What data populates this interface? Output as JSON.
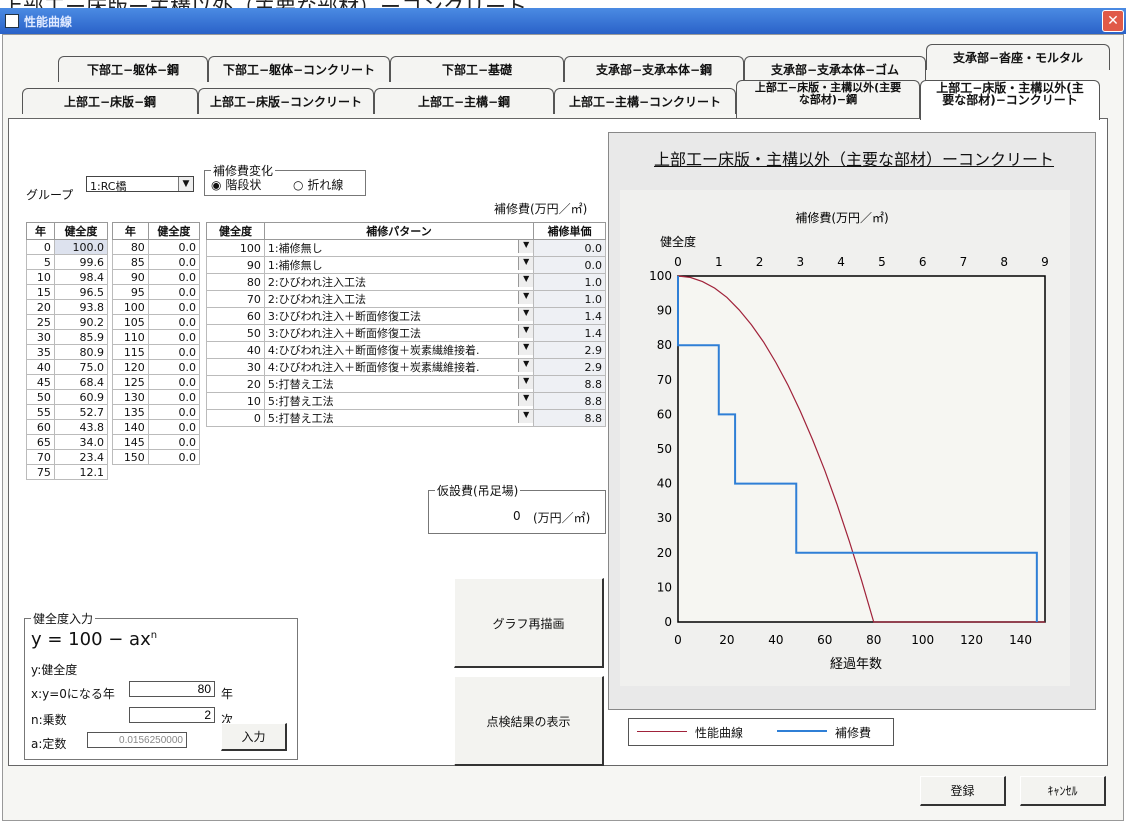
{
  "outer_caption": "上部工ー床版ー主構以外（主要な部材）ーコンクリート",
  "window": {
    "title": "性能曲線",
    "close_glyph": "✕"
  },
  "tabs": {
    "row1": [
      "下部工−躯体−鋼",
      "下部工−躯体−コンクリート",
      "下部工−基礎",
      "支承部−支承本体−鋼",
      "支承部−支承本体−ゴム",
      "支承部−沓座・モルタル"
    ],
    "row2": [
      "上部工−床版−鋼",
      "上部工−床版−コンクリート",
      "上部工−主構−鋼",
      "上部工−主構−コンクリート"
    ],
    "row2_two_line": [
      {
        "line1": "上部工−床版・主構以外(主要",
        "line2": "な部材)−鋼"
      },
      {
        "line1": "上部工−床版・主構以外(主",
        "line2": "要な部材)−コンクリート"
      }
    ]
  },
  "group_select": {
    "label": "グループ",
    "value": "1:RC橋"
  },
  "repair_change": {
    "title": "補修費変化",
    "option1": "階段状",
    "option2": "折れ線"
  },
  "unit_header": "補修費(万円／㎡)",
  "health_table": {
    "headers": [
      "年",
      "健全度",
      "年",
      "健全度"
    ],
    "left": [
      [
        "0",
        "100.0"
      ],
      [
        "5",
        "99.6"
      ],
      [
        "10",
        "98.4"
      ],
      [
        "15",
        "96.5"
      ],
      [
        "20",
        "93.8"
      ],
      [
        "25",
        "90.2"
      ],
      [
        "30",
        "85.9"
      ],
      [
        "35",
        "80.9"
      ],
      [
        "40",
        "75.0"
      ],
      [
        "45",
        "68.4"
      ],
      [
        "50",
        "60.9"
      ],
      [
        "55",
        "52.7"
      ],
      [
        "60",
        "43.8"
      ],
      [
        "65",
        "34.0"
      ],
      [
        "70",
        "23.4"
      ],
      [
        "75",
        "12.1"
      ]
    ],
    "right": [
      [
        "80",
        "0.0"
      ],
      [
        "85",
        "0.0"
      ],
      [
        "90",
        "0.0"
      ],
      [
        "95",
        "0.0"
      ],
      [
        "100",
        "0.0"
      ],
      [
        "105",
        "0.0"
      ],
      [
        "110",
        "0.0"
      ],
      [
        "115",
        "0.0"
      ],
      [
        "120",
        "0.0"
      ],
      [
        "125",
        "0.0"
      ],
      [
        "130",
        "0.0"
      ],
      [
        "135",
        "0.0"
      ],
      [
        "140",
        "0.0"
      ],
      [
        "145",
        "0.0"
      ],
      [
        "150",
        "0.0"
      ]
    ]
  },
  "repair_table": {
    "headers": [
      "健全度",
      "補修パターン",
      "補修単価"
    ],
    "rows": [
      [
        "100",
        "1:補修無し",
        "0.0"
      ],
      [
        "90",
        "1:補修無し",
        "0.0"
      ],
      [
        "80",
        "2:ひびわれ注入工法",
        "1.0"
      ],
      [
        "70",
        "2:ひびわれ注入工法",
        "1.0"
      ],
      [
        "60",
        "3:ひびわれ注入＋断面修復工法",
        "1.4"
      ],
      [
        "50",
        "3:ひびわれ注入＋断面修復工法",
        "1.4"
      ],
      [
        "40",
        "4:ひびわれ注入＋断面修復＋炭素繊維接着.",
        "2.9"
      ],
      [
        "30",
        "4:ひびわれ注入＋断面修復＋炭素繊維接着.",
        "2.9"
      ],
      [
        "20",
        "5:打替え工法",
        "8.8"
      ],
      [
        "10",
        "5:打替え工法",
        "8.8"
      ],
      [
        "0",
        "5:打替え工法",
        "8.8"
      ]
    ]
  },
  "temp_cost": {
    "title": "仮設費(吊足場)",
    "value": "0",
    "unit": "(万円／㎡)"
  },
  "health_input": {
    "title": "健全度入力",
    "formula": "y = 100 − ax",
    "formula_exp": "n",
    "y_label": "y:健全度",
    "x_label": "x:y=0になる年",
    "x_value": "80",
    "x_unit": "年",
    "n_label": "n:乗数",
    "n_value": "2",
    "n_unit": "次",
    "a_label": "a:定数",
    "a_value": "0.0156250000",
    "enter_button": "入力"
  },
  "buttons": {
    "redraw": "グラフ再描画",
    "inspection": "点検結果の表示",
    "register": "登録",
    "cancel": "ｷｬﾝｾﾙ"
  },
  "graph_title": "上部工ー床版・主構以外（主要な部材）ーコンクリート",
  "chart_data": {
    "type": "line",
    "top_axis_label": "補修費(万円／㎡)",
    "ylabel": "健全度",
    "xlabel": "経過年数",
    "xlim": [
      0,
      150
    ],
    "ylim": [
      0,
      100
    ],
    "top_lim": [
      0,
      9
    ],
    "x_ticks": [
      0,
      20,
      40,
      60,
      80,
      100,
      120,
      140
    ],
    "y_ticks": [
      0,
      10,
      20,
      30,
      40,
      50,
      60,
      70,
      80,
      90,
      100
    ],
    "top_ticks": [
      0,
      1,
      2,
      3,
      4,
      5,
      6,
      7,
      8,
      9
    ],
    "grid": true,
    "legend_placement": "bottom",
    "series": [
      {
        "name": "性能曲線",
        "color": "#a0223a",
        "x": [
          0,
          5,
          10,
          15,
          20,
          25,
          30,
          35,
          40,
          45,
          50,
          55,
          60,
          65,
          70,
          75,
          80,
          150
        ],
        "y": [
          100,
          99.6,
          98.4,
          96.5,
          93.8,
          90.2,
          85.9,
          80.9,
          75,
          68.4,
          60.9,
          52.7,
          43.8,
          34,
          23.4,
          12.1,
          0,
          0
        ]
      },
      {
        "name": "補修費",
        "color": "#2f7fd6",
        "step_cost": [
          0,
          0,
          1,
          1,
          1.4,
          1.4,
          2.9,
          2.9,
          8.8,
          8.8,
          8.8
        ],
        "step_health": [
          100,
          90,
          80,
          70,
          60,
          50,
          40,
          30,
          20,
          10,
          0
        ]
      }
    ]
  }
}
